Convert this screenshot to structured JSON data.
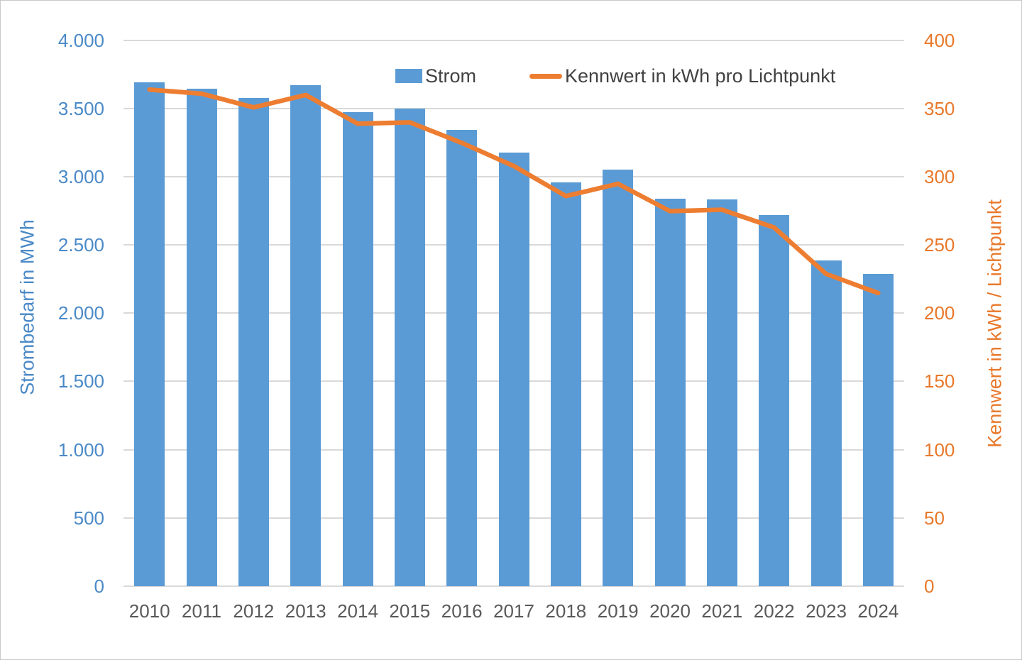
{
  "chart_data": {
    "type": "combo-bar-line",
    "title": "",
    "categories": [
      "2010",
      "2011",
      "2012",
      "2013",
      "2014",
      "2015",
      "2016",
      "2017",
      "2018",
      "2019",
      "2020",
      "2021",
      "2022",
      "2023",
      "2024"
    ],
    "series": [
      {
        "name": "Strom",
        "type": "bar",
        "axis": "left",
        "color": "#5B9BD5",
        "values": [
          3690,
          3645,
          3575,
          3670,
          3470,
          3500,
          3340,
          3175,
          2960,
          3050,
          2840,
          2835,
          2720,
          2385,
          2285
        ]
      },
      {
        "name": "Kennwert in kWh pro Lichtpunkt",
        "type": "line",
        "axis": "right",
        "color": "#ED7D31",
        "values": [
          364,
          361,
          351,
          360,
          339,
          340,
          325,
          308,
          286,
          295,
          275,
          276,
          263,
          229,
          215
        ]
      }
    ],
    "left_axis": {
      "title": "Strombedarf in MWh",
      "min": 0,
      "max": 4000,
      "step": 500,
      "tick_labels_top_to_bottom": [
        "4.000",
        "3.500",
        "3.000",
        "2.500",
        "2.000",
        "1.500",
        "1.000",
        "500",
        "0"
      ],
      "text_color": "#4A89C7"
    },
    "right_axis": {
      "title": "Kennwert in kWh / Lichtpunkt",
      "min": 0,
      "max": 400,
      "step": 50,
      "tick_labels_top_to_bottom": [
        "400",
        "350",
        "300",
        "250",
        "200",
        "150",
        "100",
        "50",
        "0"
      ],
      "text_color": "#E8782A"
    },
    "x_axis": {
      "text_color": "#595959"
    },
    "legend": {
      "position": "top",
      "items": [
        {
          "label": "Strom",
          "marker": "square",
          "color": "#5B9BD5"
        },
        {
          "label": "Kennwert in kWh pro Lichtpunkt",
          "marker": "line",
          "color": "#ED7D31"
        }
      ],
      "text_color": "#424242"
    },
    "grid": true,
    "gridline_color": "#D9D9D9",
    "background": "#FFFFFF"
  }
}
